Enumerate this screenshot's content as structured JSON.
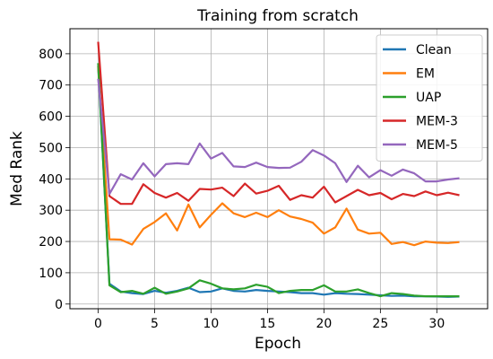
{
  "chart_data": {
    "type": "line",
    "title": "Training from scratch",
    "xlabel": "Epoch",
    "ylabel": "Med Rank",
    "xlim": [
      -2.5,
      34.5
    ],
    "ylim": [
      -15,
      880
    ],
    "xticks": [
      0,
      5,
      10,
      15,
      20,
      25,
      30
    ],
    "yticks": [
      0,
      100,
      200,
      300,
      400,
      500,
      600,
      700,
      800
    ],
    "grid": true,
    "legend_position": "top-right",
    "x": [
      0,
      1,
      2,
      3,
      4,
      5,
      6,
      7,
      8,
      9,
      10,
      11,
      12,
      13,
      14,
      15,
      16,
      17,
      18,
      19,
      20,
      21,
      22,
      23,
      24,
      25,
      26,
      27,
      28,
      29,
      30,
      31,
      32
    ],
    "series": [
      {
        "name": "Clean",
        "color": "#1f77b4",
        "values": [
          760,
          65,
          40,
          35,
          32,
          42,
          36,
          42,
          52,
          38,
          40,
          50,
          42,
          40,
          45,
          42,
          40,
          38,
          35,
          35,
          30,
          35,
          33,
          32,
          30,
          28,
          26,
          27,
          25,
          25,
          24,
          23,
          24
        ]
      },
      {
        "name": "EM",
        "color": "#ff7f0e",
        "values": [
          760,
          207,
          206,
          190,
          240,
          262,
          290,
          235,
          318,
          245,
          285,
          322,
          290,
          278,
          292,
          278,
          300,
          280,
          272,
          260,
          225,
          245,
          305,
          238,
          225,
          228,
          192,
          198,
          188,
          200,
          196,
          195,
          198
        ]
      },
      {
        "name": "UAP",
        "color": "#2ca02c",
        "values": [
          770,
          60,
          38,
          42,
          33,
          52,
          33,
          40,
          50,
          76,
          65,
          50,
          47,
          50,
          62,
          55,
          35,
          42,
          45,
          45,
          60,
          40,
          40,
          47,
          35,
          25,
          35,
          32,
          27,
          25,
          25,
          25,
          25
        ]
      },
      {
        "name": "MEM-3",
        "color": "#d62728",
        "values": [
          838,
          345,
          320,
          320,
          383,
          355,
          340,
          355,
          330,
          368,
          366,
          372,
          345,
          385,
          353,
          362,
          378,
          333,
          348,
          340,
          375,
          325,
          345,
          365,
          348,
          355,
          335,
          352,
          345,
          360,
          348,
          356,
          348
        ]
      },
      {
        "name": "MEM-5",
        "color": "#9467bd",
        "values": [
          720,
          352,
          415,
          398,
          450,
          408,
          447,
          450,
          447,
          513,
          465,
          483,
          440,
          438,
          452,
          438,
          435,
          436,
          455,
          492,
          475,
          450,
          390,
          442,
          405,
          428,
          410,
          430,
          418,
          392,
          392,
          398,
          402
        ]
      }
    ]
  }
}
